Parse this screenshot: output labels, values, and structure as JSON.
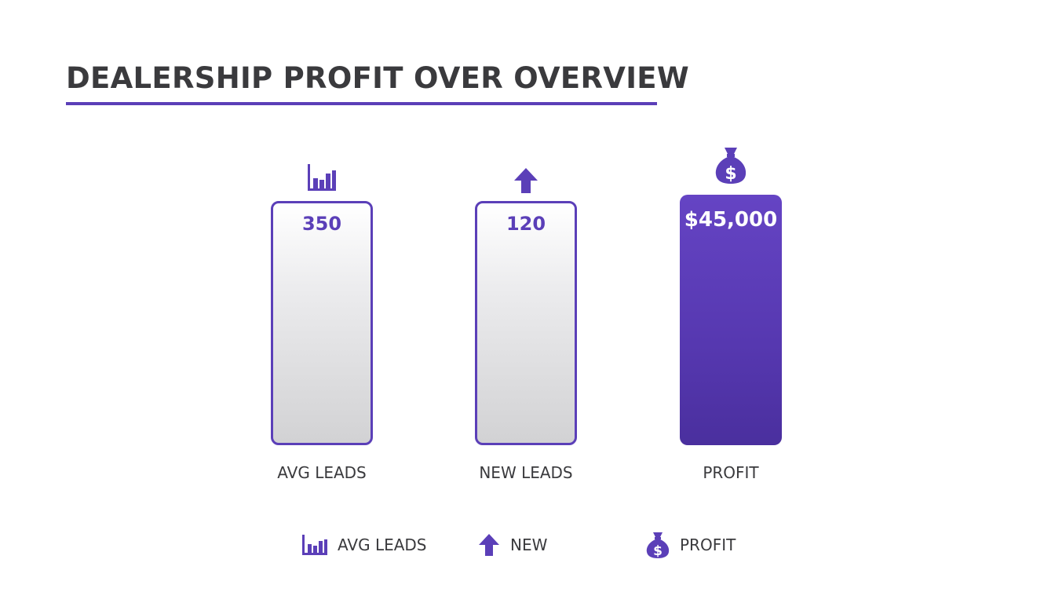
{
  "title": "DEALERSHIP PROFIT OVER OVERVIEW",
  "colors": {
    "accent": "#5b3fb8",
    "text": "#3a3a3d",
    "outline_fill": "#e6e6e8"
  },
  "chart_data": {
    "type": "bar",
    "title": "DEALERSHIP PROFIT OVER OVERVIEW",
    "categories": [
      "AVG LEADS",
      "NEW LEADS",
      "PROFIT"
    ],
    "values": [
      350,
      120,
      45000
    ],
    "data_labels": [
      "350",
      "120",
      "$45,000"
    ],
    "bar_styles": [
      "outline",
      "outline",
      "filled"
    ],
    "bar_icons": [
      "bar-chart-icon",
      "arrow-up-icon",
      "money-bag-icon"
    ],
    "xlabel": "",
    "ylabel": "",
    "grid": false,
    "legend_position": "bottom-center",
    "legend": [
      {
        "label": "AVG LEADS",
        "icon": "bar-chart-icon"
      },
      {
        "label": "NEW",
        "icon": "arrow-up-icon"
      },
      {
        "label": "PROFIT",
        "icon": "money-bag-icon"
      }
    ]
  }
}
